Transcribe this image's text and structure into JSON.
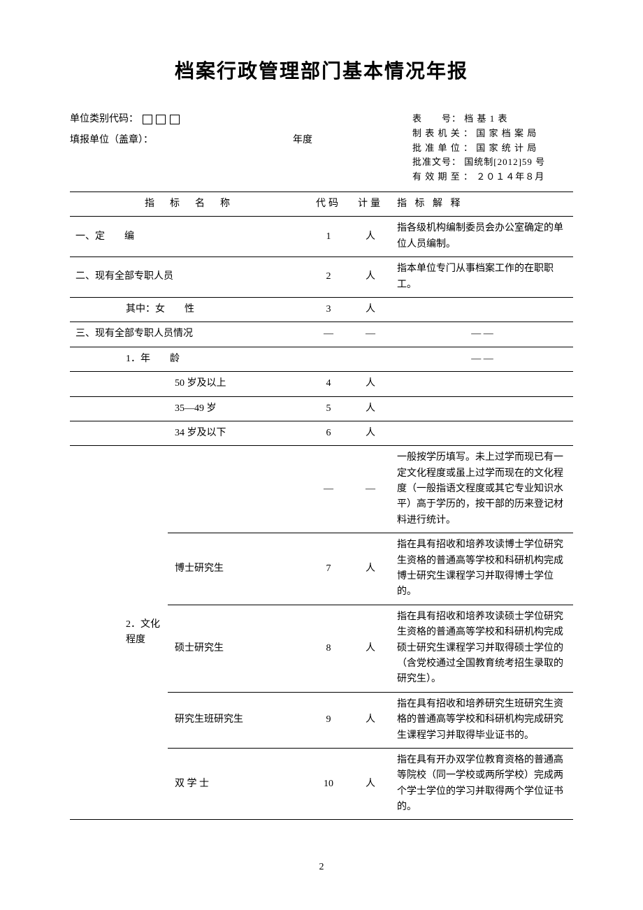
{
  "title": "档案行政管理部门基本情况年报",
  "header": {
    "unit_code_label": "单位类别代码：",
    "fill_unit_label": "填报单位（盖章）：",
    "year_label": "年度",
    "meta": {
      "form_no_label": "表　　号：",
      "form_no_value": "档 基 1 表",
      "creator_label": "制 表 机 关 ：",
      "creator_value": "国 家 档 案 局",
      "approver_label": "批 准 单 位 ：",
      "approver_value": "国 家 统 计 局",
      "approval_no_label": "批准文号：",
      "approval_no_value": "国统制[2012]59 号",
      "valid_label": "有 效 期 至 ：",
      "valid_value": "２０１４年８月"
    }
  },
  "table": {
    "headers": {
      "name": "指　标　名　称",
      "code": "代码",
      "unit": "计量",
      "desc": "指 标 解 释"
    },
    "rows": [
      {
        "name": "一、定　　编",
        "code": "1",
        "unit": "人",
        "desc": "指各级机构编制委员会办公室确定的单位人员编制。",
        "indent": 0
      },
      {
        "name": "二、现有全部专职人员",
        "code": "2",
        "unit": "人",
        "desc": "指本单位专门从事档案工作的在职职工。",
        "indent": 0
      },
      {
        "name": "其中：女　　性",
        "code": "3",
        "unit": "人",
        "desc": "",
        "indent": 2
      },
      {
        "name": "三、现有全部专职人员情况",
        "code": "—",
        "unit": "—",
        "desc": "— —",
        "indent": 0,
        "desc_center": true
      },
      {
        "name": "1．年　　龄",
        "code": "",
        "unit": "",
        "desc": "— —",
        "indent": 2,
        "desc_center": true
      },
      {
        "name": "50 岁及以上",
        "code": "4",
        "unit": "人",
        "desc": "",
        "indent": 3
      },
      {
        "name": "35—49 岁",
        "code": "5",
        "unit": "人",
        "desc": "",
        "indent": 3
      },
      {
        "name": "34 岁及以下",
        "code": "6",
        "unit": "人",
        "desc": "",
        "indent": 3
      },
      {
        "group_label": "2．文化程度",
        "name": "",
        "code": "—",
        "unit": "—",
        "desc": "一般按学历填写。未上过学而现已有一定文化程度或虽上过学而现在的文化程度（一般指语文程度或其它专业知识水平）高于学历的，按干部的历来登记材料进行统计。",
        "is_group_start": true,
        "rowspan": 5
      },
      {
        "name": "博士研究生",
        "code": "7",
        "unit": "人",
        "desc": "指在具有招收和培养攻读博士学位研究生资格的普通高等学校和科研机构完成博士研究生课程学习并取得博士学位的。",
        "in_group": true
      },
      {
        "name": "硕士研究生",
        "code": "8",
        "unit": "人",
        "desc": "指在具有招收和培养攻读硕士学位研究生资格的普通高等学校和科研机构完成硕士研究生课程学习并取得硕士学位的（含党校通过全国教育统考招生录取的研究生）。",
        "in_group": true
      },
      {
        "name": "研究生班研究生",
        "code": "9",
        "unit": "人",
        "desc": "指在具有招收和培养研究生班研究生资格的普通高等学校和科研机构完成研究生课程学习并取得毕业证书的。",
        "in_group": true
      },
      {
        "name": "双 学 士",
        "code": "10",
        "unit": "人",
        "desc": "指在具有开办双学位教育资格的普通高等院校（同一学校或两所学校）完成两个学士学位的学习并取得两个学位证书的。",
        "in_group": true
      }
    ]
  },
  "page_number": "2",
  "styling": {
    "body_width": 920,
    "body_height": 1302,
    "title_fontsize": 28,
    "body_fontsize": 14,
    "meta_fontsize": 13,
    "background_color": "#ffffff",
    "text_color": "#000000",
    "border_color": "#000000",
    "col_widths": {
      "code": 60,
      "unit": 60,
      "desc": 260
    }
  }
}
